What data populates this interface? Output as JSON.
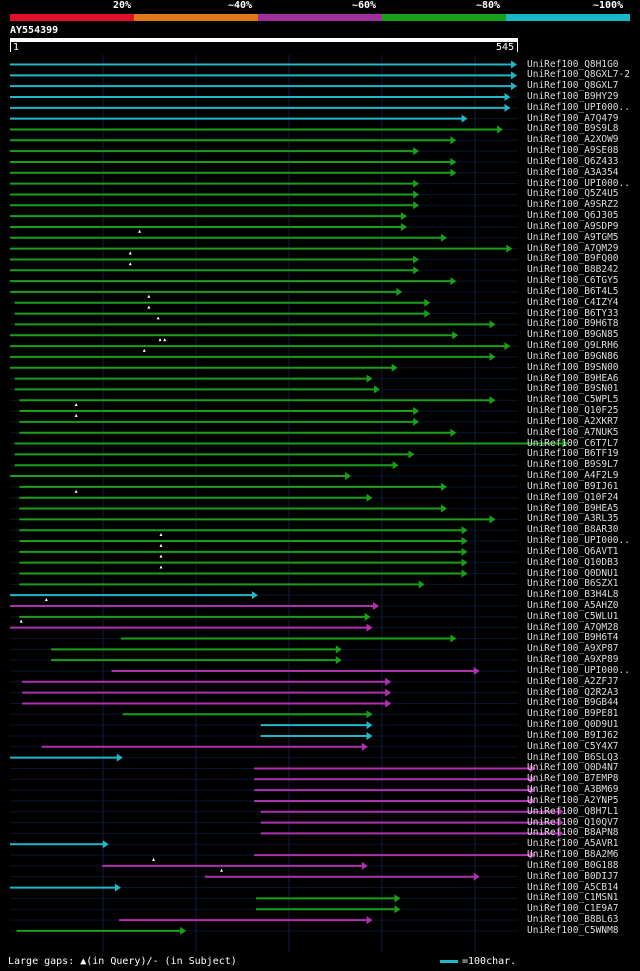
{
  "legend": {
    "items": [
      {
        "label": "20%",
        "color": "#e0102a"
      },
      {
        "label": "~40%",
        "color": "#e07818"
      },
      {
        "label": "~60%",
        "color": "#a030a0"
      },
      {
        "label": "~80%",
        "color": "#18a018"
      },
      {
        "label": "~100%",
        "color": "#18b8c8"
      }
    ]
  },
  "query": {
    "id": "AY554399",
    "start": "1",
    "end": "545",
    "length": 545
  },
  "footer": {
    "text": "Large gaps: ▲(in Query)/- (in Subject)"
  },
  "scale": {
    "text": "=100char.",
    "unit_chars": 100
  },
  "colors": {
    "cyan": "#20b8c8",
    "green": "#18a018",
    "purple": "#b030b0",
    "grid": "#102040",
    "background": "#000000"
  },
  "hits": [
    {
      "id": "UniRef100_Q8H1G0",
      "cls": "cyan",
      "start": 1,
      "end": 545,
      "gaps": [],
      "markers": []
    },
    {
      "id": "UniRef100_Q8GXL7-2",
      "cls": "cyan",
      "start": 1,
      "end": 545,
      "gaps": [],
      "markers": []
    },
    {
      "id": "UniRef100_Q8GXL7",
      "cls": "cyan",
      "start": 1,
      "end": 545,
      "gaps": [],
      "markers": []
    },
    {
      "id": "UniRef100_B9HY29",
      "cls": "cyan",
      "start": 1,
      "end": 538,
      "gaps": [],
      "markers": []
    },
    {
      "id": "UniRef100_UPI000..",
      "cls": "cyan",
      "start": 1,
      "end": 538,
      "gaps": [],
      "markers": []
    },
    {
      "id": "UniRef100_A7Q479",
      "cls": "cyan",
      "start": 1,
      "end": 492,
      "gaps": [],
      "markers": []
    },
    {
      "id": "UniRef100_B9S9L8",
      "cls": "green",
      "start": 1,
      "end": 530,
      "gaps": [],
      "markers": []
    },
    {
      "id": "UniRef100_A2XOW9",
      "cls": "green",
      "start": 1,
      "end": 480,
      "gaps": [],
      "markers": []
    },
    {
      "id": "UniRef100_A9SE08",
      "cls": "green",
      "start": 1,
      "end": 440,
      "gaps": [],
      "markers": []
    },
    {
      "id": "UniRef100_Q6Z433",
      "cls": "green",
      "start": 1,
      "end": 480,
      "gaps": [],
      "markers": []
    },
    {
      "id": "UniRef100_A3A354",
      "cls": "green",
      "start": 1,
      "end": 480,
      "gaps": [],
      "markers": []
    },
    {
      "id": "UniRef100_UPI000..",
      "cls": "green",
      "start": 1,
      "end": 440,
      "gaps": [],
      "markers": []
    },
    {
      "id": "UniRef100_Q5Z4U5",
      "cls": "green",
      "start": 1,
      "end": 440,
      "gaps": [],
      "markers": []
    },
    {
      "id": "UniRef100_A9SRZ2",
      "cls": "green",
      "start": 1,
      "end": 440,
      "gaps": [],
      "markers": []
    },
    {
      "id": "UniRef100_Q6J305",
      "cls": "green",
      "start": 1,
      "end": 427,
      "gaps": [],
      "markers": []
    },
    {
      "id": "UniRef100_A9SDP9",
      "cls": "green",
      "start": 1,
      "end": 427,
      "gaps": [],
      "markers": []
    },
    {
      "id": "UniRef100_A9TGM5",
      "cls": "green",
      "start": 1,
      "end": 470,
      "gaps": [],
      "markers": [
        140
      ]
    },
    {
      "id": "UniRef100_A7QM29",
      "cls": "green",
      "start": 1,
      "end": 540,
      "gaps": [],
      "markers": []
    },
    {
      "id": "UniRef100_B9FQ00",
      "cls": "green",
      "start": 1,
      "end": 440,
      "gaps": [],
      "markers": [
        130
      ]
    },
    {
      "id": "UniRef100_B8B242",
      "cls": "green",
      "start": 1,
      "end": 440,
      "gaps": [],
      "markers": [
        130
      ]
    },
    {
      "id": "UniRef100_C6TGY5",
      "cls": "green",
      "start": 1,
      "end": 480,
      "gaps": [],
      "markers": []
    },
    {
      "id": "UniRef100_B6T4L5",
      "cls": "green",
      "start": 1,
      "end": 422,
      "gaps": [],
      "markers": []
    },
    {
      "id": "UniRef100_C4IZY4",
      "cls": "green",
      "start": 6,
      "end": 452,
      "gaps": [],
      "markers": [
        150
      ]
    },
    {
      "id": "UniRef100_B6TY33",
      "cls": "green",
      "start": 6,
      "end": 452,
      "gaps": [],
      "markers": [
        150
      ]
    },
    {
      "id": "UniRef100_B9H6T8",
      "cls": "green",
      "start": 6,
      "end": 522,
      "gaps": [],
      "markers": [
        160
      ]
    },
    {
      "id": "UniRef100_B9GN85",
      "cls": "green",
      "start": 1,
      "end": 482,
      "gaps": [],
      "markers": []
    },
    {
      "id": "UniRef100_Q9LRH6",
      "cls": "green",
      "start": 1,
      "end": 538,
      "gaps": [],
      "markers": [
        162,
        167
      ]
    },
    {
      "id": "UniRef100_B9GN86",
      "cls": "green",
      "start": 1,
      "end": 522,
      "gaps": [],
      "markers": [
        145
      ]
    },
    {
      "id": "UniRef100_B9SN00",
      "cls": "green",
      "start": 1,
      "end": 417,
      "gaps": [],
      "markers": []
    },
    {
      "id": "UniRef100_B9HEA6",
      "cls": "green",
      "start": 6,
      "end": 390,
      "gaps": [],
      "markers": []
    },
    {
      "id": "UniRef100_B9SN01",
      "cls": "green",
      "start": 6,
      "end": 398,
      "gaps": [],
      "markers": []
    },
    {
      "id": "UniRef100_C5WPL5",
      "cls": "green",
      "start": 11,
      "end": 522,
      "gaps": [],
      "markers": []
    },
    {
      "id": "UniRef100_Q10F25",
      "cls": "green",
      "start": 11,
      "end": 440,
      "gaps": [],
      "markers": [
        72
      ]
    },
    {
      "id": "UniRef100_A2XKR7",
      "cls": "green",
      "start": 11,
      "end": 440,
      "gaps": [],
      "markers": [
        72
      ]
    },
    {
      "id": "UniRef100_A7NUK5",
      "cls": "green",
      "start": 11,
      "end": 480,
      "gaps": [],
      "markers": []
    },
    {
      "id": "UniRef100_C6T7L7",
      "cls": "green",
      "start": 6,
      "end": 600,
      "gaps": [],
      "markers": []
    },
    {
      "id": "UniRef100_B6TF19",
      "cls": "green",
      "start": 6,
      "end": 435,
      "gaps": [],
      "markers": []
    },
    {
      "id": "UniRef100_B9S9L7",
      "cls": "green",
      "start": 6,
      "end": 418,
      "gaps": [],
      "markers": []
    },
    {
      "id": "UniRef100_A4F2L9",
      "cls": "green",
      "start": 1,
      "end": 367,
      "gaps": [],
      "markers": []
    },
    {
      "id": "UniRef100_B9IJ61",
      "cls": "green",
      "start": 11,
      "end": 470,
      "gaps": [],
      "markers": []
    },
    {
      "id": "UniRef100_Q10F24",
      "cls": "green",
      "start": 11,
      "end": 390,
      "gaps": [],
      "markers": [
        72
      ]
    },
    {
      "id": "UniRef100_B9HEA5",
      "cls": "green",
      "start": 11,
      "end": 470,
      "gaps": [],
      "markers": []
    },
    {
      "id": "UniRef100_A3RL35",
      "cls": "green",
      "start": 11,
      "end": 522,
      "gaps": [],
      "markers": []
    },
    {
      "id": "UniRef100_B8AR30",
      "cls": "green",
      "start": 11,
      "end": 492,
      "gaps": [],
      "markers": []
    },
    {
      "id": "UniRef100_UPI000..",
      "cls": "green",
      "start": 11,
      "end": 492,
      "gaps": [],
      "markers": [
        163
      ]
    },
    {
      "id": "UniRef100_Q6AVT1",
      "cls": "green",
      "start": 11,
      "end": 492,
      "gaps": [],
      "markers": [
        163
      ]
    },
    {
      "id": "UniRef100_Q10DB3",
      "cls": "green",
      "start": 11,
      "end": 492,
      "gaps": [],
      "markers": [
        163
      ]
    },
    {
      "id": "UniRef100_Q0DNU1",
      "cls": "green",
      "start": 11,
      "end": 492,
      "gaps": [],
      "markers": [
        163
      ]
    },
    {
      "id": "UniRef100_B6SZX1",
      "cls": "green",
      "start": 11,
      "end": 446,
      "gaps": [],
      "markers": []
    },
    {
      "id": "UniRef100_B3H4L8",
      "cls": "cyan",
      "start": 1,
      "end": 267,
      "gaps": [],
      "markers": []
    },
    {
      "id": "UniRef100_A5AHZ0",
      "cls": "purple",
      "start": 1,
      "end": 397,
      "gaps": [],
      "markers": [
        40
      ]
    },
    {
      "id": "UniRef100_C5WLU1",
      "cls": "green",
      "start": 11,
      "end": 388,
      "gaps": [],
      "markers": []
    },
    {
      "id": "UniRef100_A7QM28",
      "cls": "purple",
      "start": 1,
      "end": 390,
      "gaps": [],
      "markers": [
        13
      ]
    },
    {
      "id": "UniRef100_B9H6T4",
      "cls": "green",
      "start": 120,
      "end": 480,
      "gaps": [],
      "markers": []
    },
    {
      "id": "UniRef100_A9XP87",
      "cls": "green",
      "start": 45,
      "end": 357,
      "gaps": [],
      "markers": []
    },
    {
      "id": "UniRef100_A9XP89",
      "cls": "green",
      "start": 45,
      "end": 357,
      "gaps": [],
      "markers": []
    },
    {
      "id": "UniRef100_UPI000..",
      "cls": "purple",
      "start": 110,
      "end": 505,
      "gaps": [],
      "markers": []
    },
    {
      "id": "UniRef100_A2ZFJ7",
      "cls": "purple",
      "start": 14,
      "end": 410,
      "gaps": [],
      "markers": []
    },
    {
      "id": "UniRef100_Q2R2A3",
      "cls": "purple",
      "start": 14,
      "end": 410,
      "gaps": [],
      "markers": []
    },
    {
      "id": "UniRef100_B9GB44",
      "cls": "purple",
      "start": 14,
      "end": 410,
      "gaps": [],
      "markers": []
    },
    {
      "id": "UniRef100_B9PE81",
      "cls": "green",
      "start": 122,
      "end": 390,
      "gaps": [],
      "markers": []
    },
    {
      "id": "UniRef100_Q0D9U1",
      "cls": "cyan",
      "start": 270,
      "end": 390,
      "gaps": [],
      "markers": []
    },
    {
      "id": "UniRef100_B9IJ62",
      "cls": "cyan",
      "start": 270,
      "end": 390,
      "gaps": [],
      "markers": []
    },
    {
      "id": "UniRef100_C5Y4X7",
      "cls": "purple",
      "start": 35,
      "end": 385,
      "gaps": [],
      "markers": []
    },
    {
      "id": "UniRef100_B6SLQ3",
      "cls": "cyan",
      "start": 1,
      "end": 122,
      "gaps": [],
      "markers": []
    },
    {
      "id": "UniRef100_Q0D4N7",
      "cls": "purple",
      "start": 263,
      "end": 565,
      "gaps": [],
      "markers": []
    },
    {
      "id": "UniRef100_B7EMP8",
      "cls": "purple",
      "start": 263,
      "end": 565,
      "gaps": [],
      "markers": []
    },
    {
      "id": "UniRef100_A3BM69",
      "cls": "purple",
      "start": 263,
      "end": 565,
      "gaps": [],
      "markers": []
    },
    {
      "id": "UniRef100_A2YNP5",
      "cls": "purple",
      "start": 263,
      "end": 565,
      "gaps": [],
      "markers": []
    },
    {
      "id": "UniRef100_Q8H7L1",
      "cls": "purple",
      "start": 270,
      "end": 595,
      "gaps": [],
      "markers": []
    },
    {
      "id": "UniRef100_Q10QV7",
      "cls": "purple",
      "start": 270,
      "end": 595,
      "gaps": [],
      "markers": []
    },
    {
      "id": "UniRef100_B8APN8",
      "cls": "purple",
      "start": 270,
      "end": 595,
      "gaps": [],
      "markers": []
    },
    {
      "id": "UniRef100_A5AVR1",
      "cls": "cyan",
      "start": 1,
      "end": 107,
      "gaps": [],
      "markers": []
    },
    {
      "id": "UniRef100_B8A2M6",
      "cls": "purple",
      "start": 263,
      "end": 565,
      "gaps": [],
      "markers": []
    },
    {
      "id": "UniRef100_B0G188",
      "cls": "purple",
      "start": 100,
      "end": 385,
      "gaps": [],
      "markers": [
        155
      ]
    },
    {
      "id": "UniRef100_B0DIJ7",
      "cls": "purple",
      "start": 210,
      "end": 505,
      "gaps": [],
      "markers": [
        228
      ]
    },
    {
      "id": "UniRef100_A5CB14",
      "cls": "cyan",
      "start": 1,
      "end": 120,
      "gaps": [],
      "markers": []
    },
    {
      "id": "UniRef100_C1MSN1",
      "cls": "green",
      "start": 265,
      "end": 420,
      "gaps": [],
      "markers": []
    },
    {
      "id": "UniRef100_C1E9A7",
      "cls": "green",
      "start": 265,
      "end": 420,
      "gaps": [],
      "markers": []
    },
    {
      "id": "UniRef100_B8BL63",
      "cls": "purple",
      "start": 118,
      "end": 390,
      "gaps": [],
      "markers": []
    },
    {
      "id": "UniRef100_C5WNM8",
      "cls": "green",
      "start": 8,
      "end": 190,
      "gaps": [],
      "markers": []
    }
  ]
}
